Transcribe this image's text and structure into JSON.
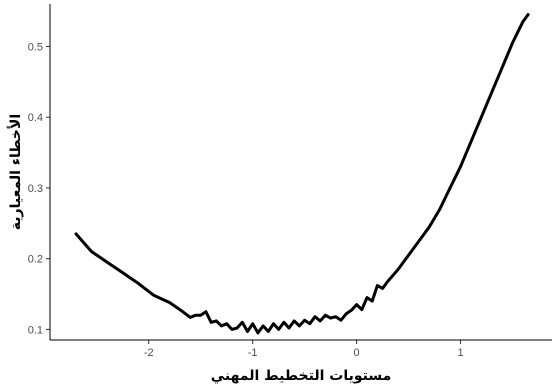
{
  "chart_data": {
    "type": "line",
    "title": "",
    "xlabel": "مستويات التخطيط المهني",
    "ylabel": "الأخطاء المعيارية",
    "xlim": [
      -2.95,
      1.88
    ],
    "ylim": [
      0.085,
      0.56
    ],
    "x_ticks": [
      -2,
      -1,
      0,
      1
    ],
    "x_tick_labels": [
      "-2",
      "-1",
      "0",
      "1"
    ],
    "y_ticks": [
      0.1,
      0.2,
      0.3,
      0.4,
      0.5
    ],
    "y_tick_labels": [
      "0.1",
      "0.2",
      "0.3",
      "0.4",
      "0.5"
    ],
    "grid": false,
    "legend": "none",
    "series": [
      {
        "color": "#000000",
        "x": [
          -2.7,
          -2.55,
          -2.4,
          -2.25,
          -2.1,
          -1.95,
          -1.8,
          -1.7,
          -1.6,
          -1.55,
          -1.5,
          -1.45,
          -1.4,
          -1.35,
          -1.3,
          -1.25,
          -1.2,
          -1.15,
          -1.1,
          -1.05,
          -1.0,
          -0.95,
          -0.9,
          -0.85,
          -0.8,
          -0.75,
          -0.7,
          -0.65,
          -0.6,
          -0.55,
          -0.5,
          -0.45,
          -0.4,
          -0.35,
          -0.3,
          -0.25,
          -0.2,
          -0.15,
          -0.1,
          -0.05,
          0.0,
          0.05,
          0.1,
          0.15,
          0.2,
          0.25,
          0.3,
          0.4,
          0.5,
          0.6,
          0.7,
          0.8,
          0.9,
          1.0,
          1.1,
          1.2,
          1.3,
          1.4,
          1.5,
          1.6,
          1.65
        ],
        "values": [
          0.235,
          0.21,
          0.195,
          0.18,
          0.165,
          0.148,
          0.138,
          0.128,
          0.117,
          0.12,
          0.12,
          0.125,
          0.11,
          0.112,
          0.105,
          0.108,
          0.1,
          0.102,
          0.11,
          0.097,
          0.108,
          0.095,
          0.105,
          0.097,
          0.108,
          0.1,
          0.11,
          0.102,
          0.112,
          0.105,
          0.113,
          0.108,
          0.118,
          0.112,
          0.12,
          0.116,
          0.118,
          0.113,
          0.122,
          0.127,
          0.135,
          0.128,
          0.145,
          0.14,
          0.162,
          0.158,
          0.168,
          0.185,
          0.205,
          0.225,
          0.245,
          0.27,
          0.3,
          0.33,
          0.365,
          0.4,
          0.435,
          0.47,
          0.505,
          0.535,
          0.545
        ]
      }
    ]
  }
}
